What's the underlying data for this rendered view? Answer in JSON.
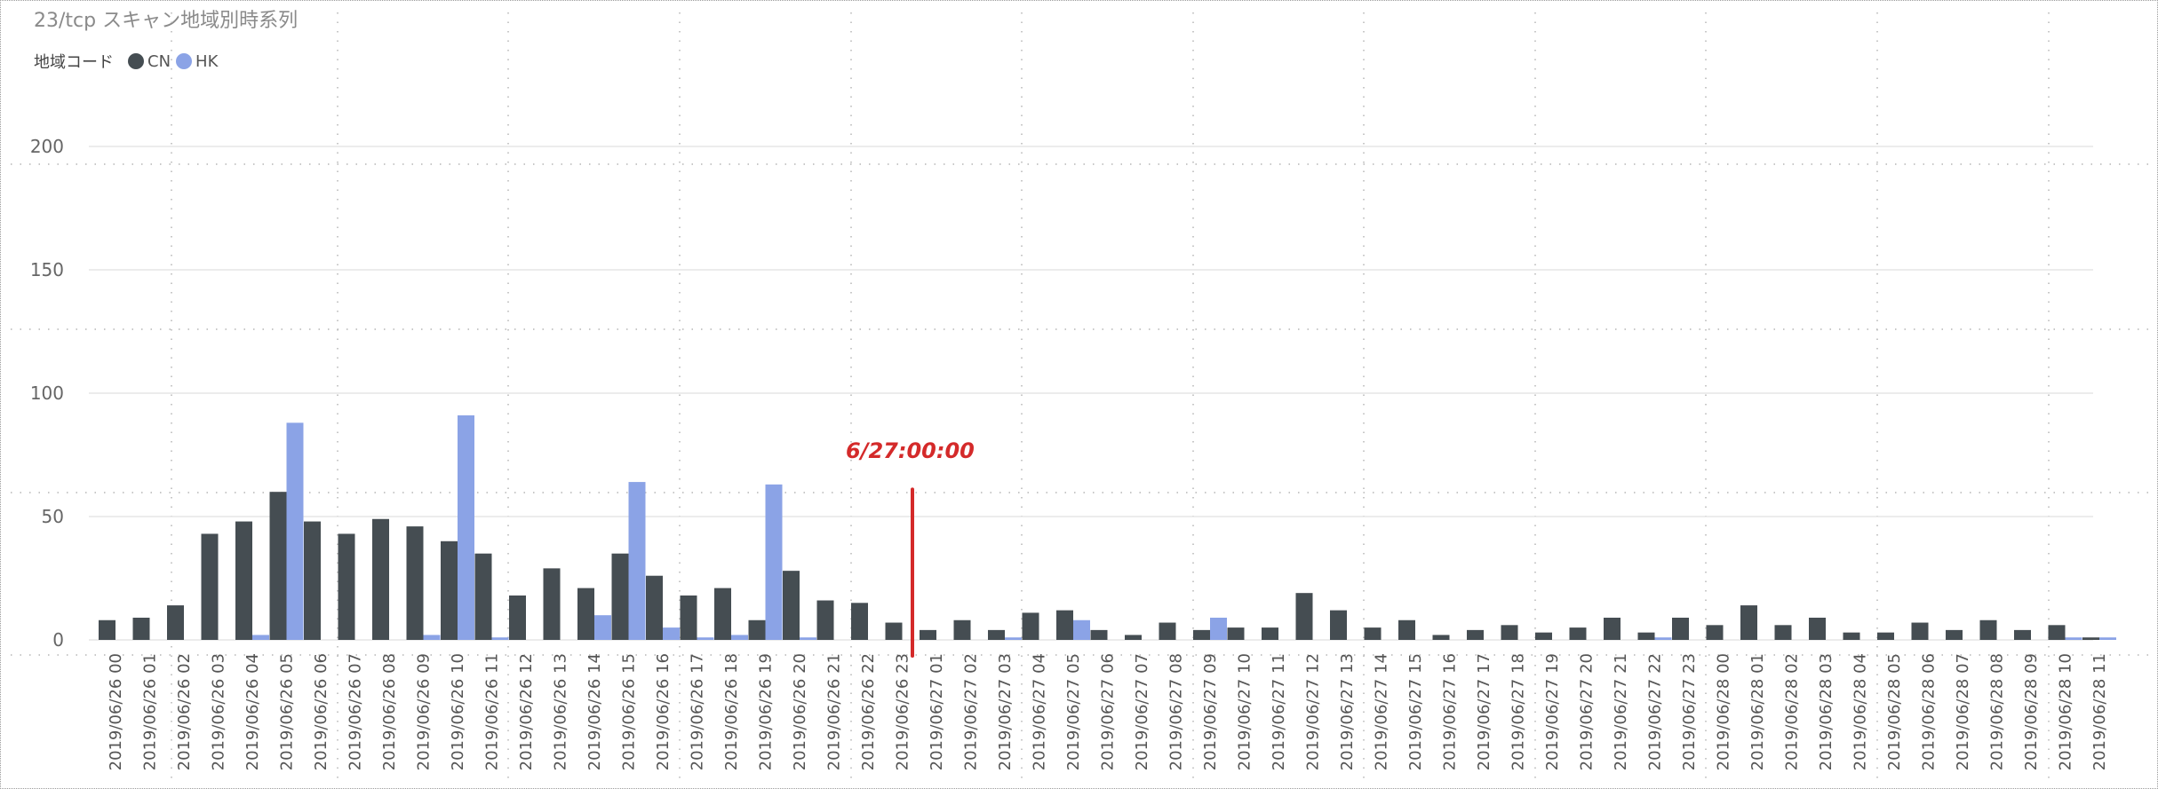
{
  "chart_data": {
    "type": "bar",
    "title": "23/tcp スキャン地域別時系列",
    "legend": {
      "title": "地域コード",
      "placement": "top-left",
      "entries": [
        {
          "name": "CN",
          "color": "#454d52"
        },
        {
          "name": "HK",
          "color": "#8ba3e6"
        }
      ]
    },
    "ylim": [
      0,
      200
    ],
    "yticks": [
      0,
      50,
      100,
      150,
      200
    ],
    "grid": true,
    "categories": [
      "2019/06/26 00",
      "2019/06/26 01",
      "2019/06/26 02",
      "2019/06/26 03",
      "2019/06/26 04",
      "2019/06/26 05",
      "2019/06/26 06",
      "2019/06/26 07",
      "2019/06/26 08",
      "2019/06/26 09",
      "2019/06/26 10",
      "2019/06/26 11",
      "2019/06/26 12",
      "2019/06/26 13",
      "2019/06/26 14",
      "2019/06/26 15",
      "2019/06/26 16",
      "2019/06/26 17",
      "2019/06/26 18",
      "2019/06/26 19",
      "2019/06/26 20",
      "2019/06/26 21",
      "2019/06/26 22",
      "2019/06/26 23",
      "2019/06/27 01",
      "2019/06/27 02",
      "2019/06/27 03",
      "2019/06/27 04",
      "2019/06/27 05",
      "2019/06/27 06",
      "2019/06/27 07",
      "2019/06/27 08",
      "2019/06/27 09",
      "2019/06/27 10",
      "2019/06/27 11",
      "2019/06/27 12",
      "2019/06/27 13",
      "2019/06/27 14",
      "2019/06/27 15",
      "2019/06/27 16",
      "2019/06/27 17",
      "2019/06/27 18",
      "2019/06/27 19",
      "2019/06/27 20",
      "2019/06/27 21",
      "2019/06/27 22",
      "2019/06/27 23",
      "2019/06/28 00",
      "2019/06/28 01",
      "2019/06/28 02",
      "2019/06/28 03",
      "2019/06/28 04",
      "2019/06/28 05",
      "2019/06/28 06",
      "2019/06/28 07",
      "2019/06/28 08",
      "2019/06/28 09",
      "2019/06/28 10",
      "2019/06/28 11"
    ],
    "series": [
      {
        "name": "CN",
        "color": "#454d52",
        "values": [
          8,
          9,
          14,
          43,
          48,
          60,
          48,
          43,
          49,
          46,
          40,
          35,
          18,
          29,
          21,
          35,
          26,
          18,
          21,
          8,
          28,
          16,
          15,
          7,
          4,
          8,
          4,
          11,
          12,
          4,
          2,
          7,
          4,
          5,
          5,
          19,
          12,
          5,
          8,
          2,
          4,
          6,
          3,
          5,
          9,
          3,
          9,
          6,
          14,
          6,
          9,
          3,
          3,
          7,
          4,
          8,
          4,
          6,
          1
        ]
      },
      {
        "name": "HK",
        "color": "#8ba3e6",
        "values": [
          0,
          0,
          0,
          0,
          2,
          88,
          0,
          0,
          0,
          2,
          91,
          1,
          0,
          0,
          10,
          64,
          5,
          1,
          2,
          63,
          1,
          0,
          0,
          0,
          0,
          0,
          1,
          0,
          8,
          0,
          0,
          0,
          9,
          0,
          0,
          0,
          0,
          0,
          0,
          0,
          0,
          0,
          0,
          0,
          0,
          1,
          0,
          0,
          0,
          0,
          0,
          0,
          0,
          0,
          0,
          0,
          0,
          1,
          1
        ]
      }
    ],
    "annotations": [
      {
        "text": "6/27:00:00",
        "color": "#d42a2a",
        "line_from": 0,
        "line_to": 61
      }
    ]
  }
}
